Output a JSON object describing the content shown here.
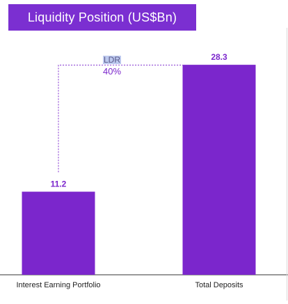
{
  "title": "Liquidity Position (US$Bn)",
  "colors": {
    "bar": "#7b26cc",
    "banner": "#7b2fd1",
    "label": "#7b26cc",
    "axis": "#333333",
    "connector": "#7b26cc",
    "ldr_highlight": "#bcc8ee",
    "ldr_text": "#5a5a8a"
  },
  "annotation": {
    "label": "LDR",
    "value": "40%"
  },
  "chart_data": {
    "type": "bar",
    "title": "Liquidity Position (US$Bn)",
    "categories": [
      "Interest Earning Portfolio",
      "Total Deposits"
    ],
    "values": [
      11.2,
      28.3
    ],
    "value_labels": [
      "11.2",
      "28.3"
    ],
    "ylim": [
      0,
      30
    ],
    "grid": false,
    "legend": "none",
    "annotations": [
      {
        "text": "LDR",
        "connects": [
          "Interest Earning Portfolio",
          "Total Deposits"
        ]
      },
      {
        "text": "40%",
        "connects": [
          "Interest Earning Portfolio",
          "Total Deposits"
        ]
      }
    ]
  }
}
